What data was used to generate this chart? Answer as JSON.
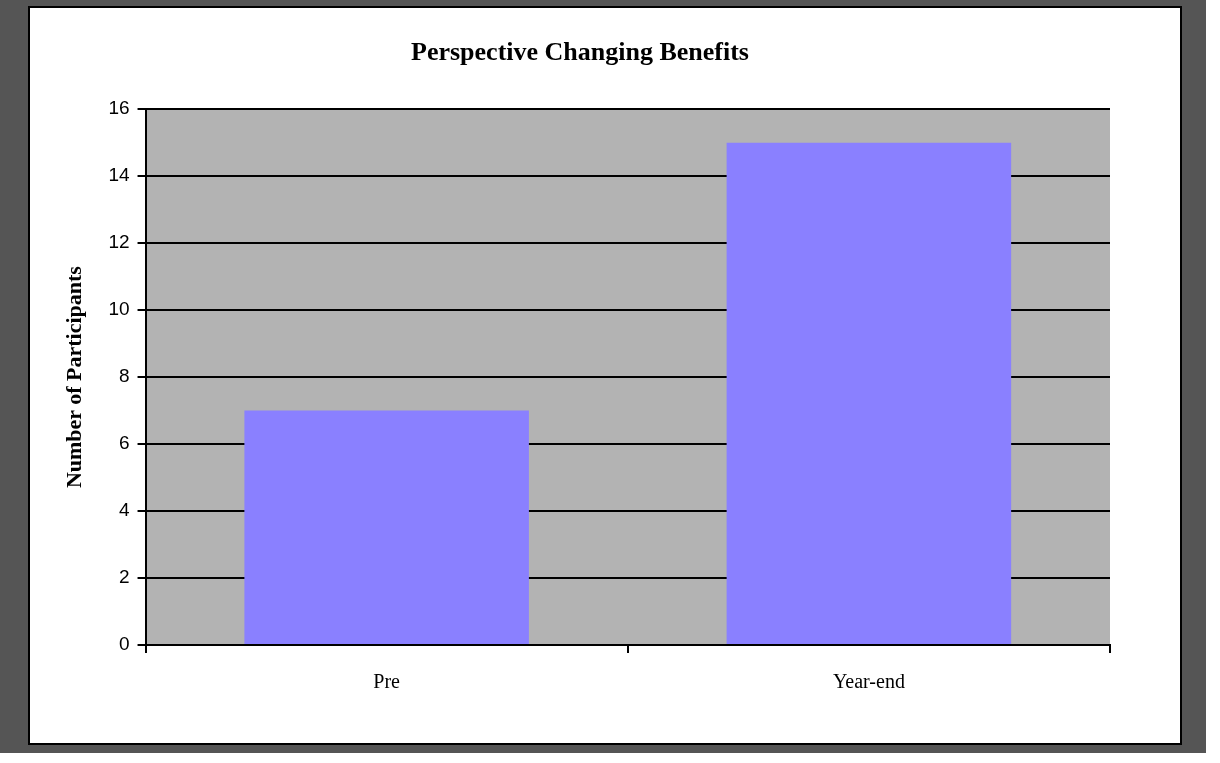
{
  "chart_data": {
    "type": "bar",
    "title": "Perspective Changing Benefits",
    "ylabel": "Number of Participants",
    "categories": [
      "Pre",
      "Year-end"
    ],
    "values": [
      7,
      15
    ],
    "color": "#8a80ff",
    "ylim": [
      0,
      16
    ],
    "yticks": [
      0,
      2,
      4,
      6,
      8,
      10,
      12,
      14,
      16
    ],
    "grid": "y",
    "legend": false
  }
}
